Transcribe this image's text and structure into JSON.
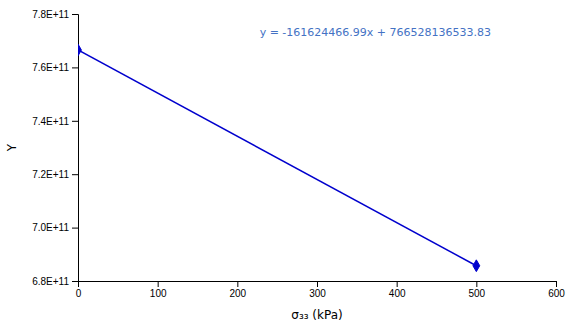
{
  "chart_data": {
    "type": "line",
    "x": [
      0,
      500
    ],
    "series": [
      {
        "values": [
          766528136533.83,
          685715903038.83
        ],
        "color": "#0000CD",
        "marker": "diamond",
        "line_style": "solid"
      }
    ],
    "xlabel": "σ₃₃ (kPa)",
    "ylabel": "Y",
    "xlim": [
      0,
      600
    ],
    "ylim": [
      680000000000,
      780000000000
    ],
    "xticks": [
      0,
      100,
      200,
      300,
      400,
      500,
      600
    ],
    "yticks": [
      {
        "value": 680000000000,
        "label": "6.8E+11"
      },
      {
        "value": 700000000000,
        "label": "7.0E+11"
      },
      {
        "value": 720000000000,
        "label": "7.2E+11"
      },
      {
        "value": 740000000000,
        "label": "7.4E+11"
      },
      {
        "value": 760000000000,
        "label": "7.6E+11"
      },
      {
        "value": 780000000000,
        "label": "7.8E+11"
      }
    ],
    "annotations": [
      {
        "text": "y = -161624466.99x + 766528136533.83",
        "color": "#4472C4"
      }
    ],
    "grid": false
  }
}
